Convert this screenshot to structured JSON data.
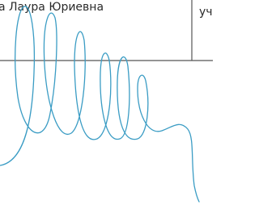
{
  "table": {
    "cells": [
      "а Лаура Юриевна",
      "уч"
    ]
  }
}
